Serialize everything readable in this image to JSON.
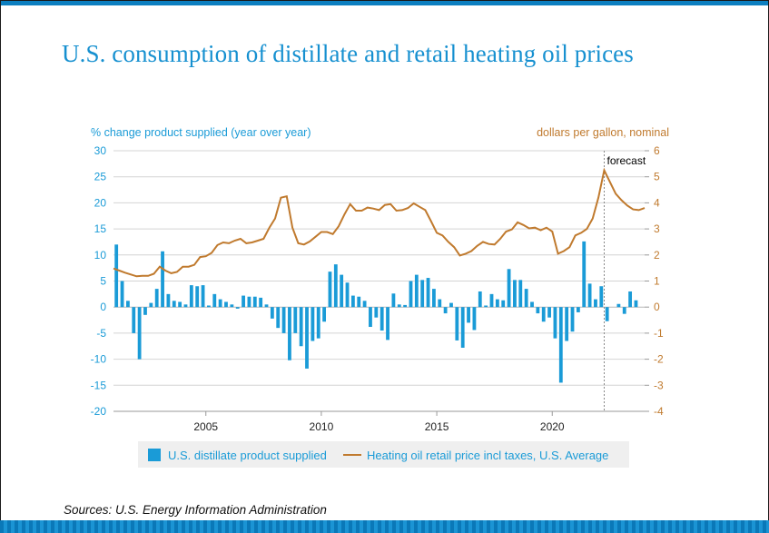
{
  "title": "U.S. consumption of distillate and retail heating oil prices",
  "source": "Sources: U.S. Energy Information Administration",
  "chart_data": {
    "type": "bar+line",
    "left_axis": {
      "label": "% change product supplied (year over year)",
      "ticks": [
        30,
        25,
        20,
        15,
        10,
        5,
        0,
        -5,
        -10,
        -15,
        -20
      ],
      "range": [
        -20,
        30
      ],
      "color": "#1a9bd7"
    },
    "right_axis": {
      "label": "dollars per gallon, nominal",
      "ticks": [
        6,
        5,
        4,
        3,
        2,
        1,
        0,
        -1,
        -2,
        -3,
        -4
      ],
      "range": [
        -4,
        6
      ],
      "color": "#c07a2e"
    },
    "x_axis": {
      "ticks": [
        "2005",
        "2010",
        "2015",
        "2020"
      ],
      "range": [
        2001.0,
        2024.0
      ]
    },
    "grid": true,
    "annotation": {
      "text": "forecast",
      "x": 2022.25
    },
    "bar_series": {
      "name": "U.S. distillate product supplied",
      "color": "#1a9bd7",
      "x": [
        2001.125,
        2001.375,
        2001.625,
        2001.875,
        2002.125,
        2002.375,
        2002.625,
        2002.875,
        2003.125,
        2003.375,
        2003.625,
        2003.875,
        2004.125,
        2004.375,
        2004.625,
        2004.875,
        2005.125,
        2005.375,
        2005.625,
        2005.875,
        2006.125,
        2006.375,
        2006.625,
        2006.875,
        2007.125,
        2007.375,
        2007.625,
        2007.875,
        2008.125,
        2008.375,
        2008.625,
        2008.875,
        2009.125,
        2009.375,
        2009.625,
        2009.875,
        2010.125,
        2010.375,
        2010.625,
        2010.875,
        2011.125,
        2011.375,
        2011.625,
        2011.875,
        2012.125,
        2012.375,
        2012.625,
        2012.875,
        2013.125,
        2013.375,
        2013.625,
        2013.875,
        2014.125,
        2014.375,
        2014.625,
        2014.875,
        2015.125,
        2015.375,
        2015.625,
        2015.875,
        2016.125,
        2016.375,
        2016.625,
        2016.875,
        2017.125,
        2017.375,
        2017.625,
        2017.875,
        2018.125,
        2018.375,
        2018.625,
        2018.875,
        2019.125,
        2019.375,
        2019.625,
        2019.875,
        2020.125,
        2020.375,
        2020.625,
        2020.875,
        2021.125,
        2021.375,
        2021.625,
        2021.875,
        2022.125,
        2022.375,
        2022.625,
        2022.875,
        2023.125,
        2023.375,
        2023.625,
        2023.875
      ],
      "values": [
        12.0,
        5.0,
        1.2,
        -5.0,
        -10.0,
        -1.5,
        0.8,
        3.5,
        10.7,
        2.5,
        1.2,
        1.0,
        0.5,
        4.2,
        4.0,
        4.2,
        0.3,
        2.5,
        1.5,
        1.0,
        0.5,
        -0.3,
        2.2,
        2.0,
        2.0,
        1.8,
        0.5,
        -2.2,
        -4.0,
        -5.0,
        -10.2,
        -5.0,
        -7.5,
        -11.8,
        -6.5,
        -6.0,
        -2.8,
        6.8,
        8.2,
        6.2,
        4.7,
        2.2,
        2.0,
        1.2,
        -3.8,
        -2.0,
        -4.5,
        -6.3,
        2.6,
        0.5,
        0.4,
        5.0,
        6.2,
        5.2,
        5.6,
        3.5,
        1.5,
        -1.2,
        0.8,
        -6.4,
        -7.8,
        -3.0,
        -4.4,
        3.0,
        0.3,
        2.5,
        1.5,
        1.3,
        7.3,
        5.2,
        5.2,
        3.5,
        1.0,
        -1.2,
        -2.8,
        -2.0,
        -6.0,
        -14.5,
        -6.5,
        -4.7,
        -1.0,
        12.6,
        4.5,
        1.5,
        4.0,
        -2.7,
        0.0,
        0.6,
        -1.3,
        3.0,
        1.3,
        0.0
      ]
    },
    "line_series": {
      "name": "Heating oil retail price incl taxes, U.S. Average",
      "color": "#c07a2e",
      "x": [
        2001.0,
        2001.25,
        2001.5,
        2001.75,
        2002.0,
        2002.25,
        2002.5,
        2002.75,
        2003.0,
        2003.25,
        2003.5,
        2003.75,
        2004.0,
        2004.25,
        2004.5,
        2004.75,
        2005.0,
        2005.25,
        2005.5,
        2005.75,
        2006.0,
        2006.25,
        2006.5,
        2006.75,
        2007.0,
        2007.25,
        2007.5,
        2007.75,
        2008.0,
        2008.25,
        2008.5,
        2008.75,
        2009.0,
        2009.25,
        2009.5,
        2009.75,
        2010.0,
        2010.25,
        2010.5,
        2010.75,
        2011.0,
        2011.25,
        2011.5,
        2011.75,
        2012.0,
        2012.25,
        2012.5,
        2012.75,
        2013.0,
        2013.25,
        2013.5,
        2013.75,
        2014.0,
        2014.25,
        2014.5,
        2014.75,
        2015.0,
        2015.25,
        2015.5,
        2015.75,
        2016.0,
        2016.25,
        2016.5,
        2016.75,
        2017.0,
        2017.25,
        2017.5,
        2017.75,
        2018.0,
        2018.25,
        2018.5,
        2018.75,
        2019.0,
        2019.25,
        2019.5,
        2019.75,
        2020.0,
        2020.25,
        2020.5,
        2020.75,
        2021.0,
        2021.25,
        2021.5,
        2021.75,
        2022.0,
        2022.25,
        2022.5,
        2022.75,
        2023.0,
        2023.25,
        2023.5,
        2023.75,
        2024.0
      ],
      "values": [
        1.48,
        1.4,
        1.32,
        1.25,
        1.18,
        1.2,
        1.2,
        1.28,
        1.55,
        1.4,
        1.3,
        1.35,
        1.55,
        1.55,
        1.62,
        1.92,
        1.95,
        2.08,
        2.38,
        2.48,
        2.45,
        2.55,
        2.62,
        2.45,
        2.48,
        2.55,
        2.62,
        3.05,
        3.4,
        4.2,
        4.25,
        3.05,
        2.45,
        2.4,
        2.52,
        2.7,
        2.88,
        2.88,
        2.8,
        3.1,
        3.55,
        3.95,
        3.7,
        3.7,
        3.82,
        3.78,
        3.72,
        3.92,
        3.95,
        3.7,
        3.72,
        3.8,
        3.98,
        3.85,
        3.72,
        3.3,
        2.85,
        2.75,
        2.5,
        2.3,
        1.98,
        2.05,
        2.15,
        2.35,
        2.5,
        2.42,
        2.4,
        2.62,
        2.9,
        2.98,
        3.25,
        3.15,
        3.02,
        3.05,
        2.95,
        3.05,
        2.9,
        2.05,
        2.15,
        2.3,
        2.75,
        2.85,
        3.0,
        3.4,
        4.2,
        5.25,
        4.8,
        4.35,
        4.1,
        3.9,
        3.75,
        3.72,
        3.8
      ]
    },
    "legend": {
      "placement": "bottom-center"
    }
  }
}
